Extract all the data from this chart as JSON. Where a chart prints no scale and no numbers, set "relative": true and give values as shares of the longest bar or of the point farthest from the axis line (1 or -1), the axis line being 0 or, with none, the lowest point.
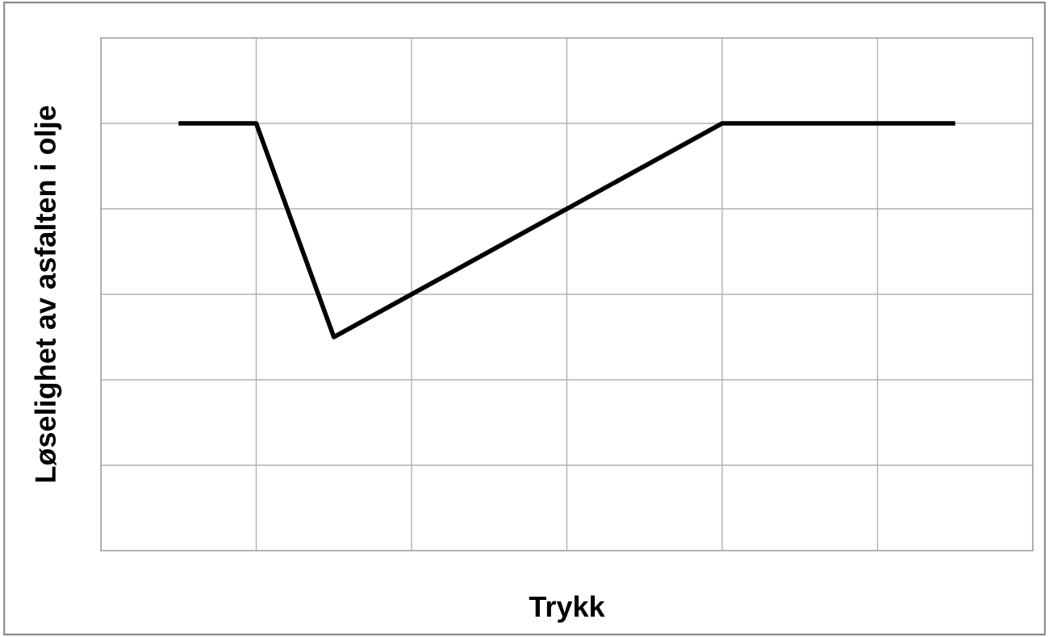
{
  "chart_data": {
    "type": "line",
    "relative": true,
    "xlabel": "Trykk",
    "ylabel": "Løselighet av asfalten i olje",
    "categories": [
      null,
      null,
      null,
      null,
      null,
      null,
      null,
      null,
      null,
      null,
      null
    ],
    "series": [
      {
        "color": "#000000",
        "values": [
          1,
          1,
          0.5,
          0.6,
          0.7,
          0.8,
          0.9,
          1,
          1,
          1,
          1
        ]
      }
    ],
    "grid": true,
    "tick_labels": false,
    "marker": "none",
    "line_style": "solid"
  }
}
